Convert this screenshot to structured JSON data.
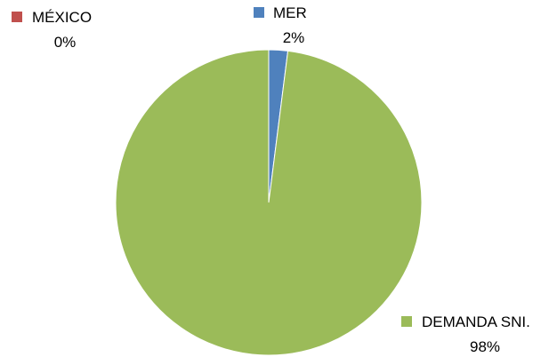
{
  "chart_data": {
    "type": "pie",
    "title": "",
    "slices": [
      {
        "label": "MER",
        "value": 2,
        "display": "2%",
        "color": "#4f81bd"
      },
      {
        "label": "MÉXICO",
        "value": 0,
        "display": "0%",
        "color": "#c0504d"
      },
      {
        "label": "DEMANDA SNI.",
        "value": 98,
        "display": "98%",
        "color": "#9bbb59"
      }
    ],
    "start_angle_deg": 0,
    "direction": "clockwise",
    "labels": "outside with legend keys"
  }
}
